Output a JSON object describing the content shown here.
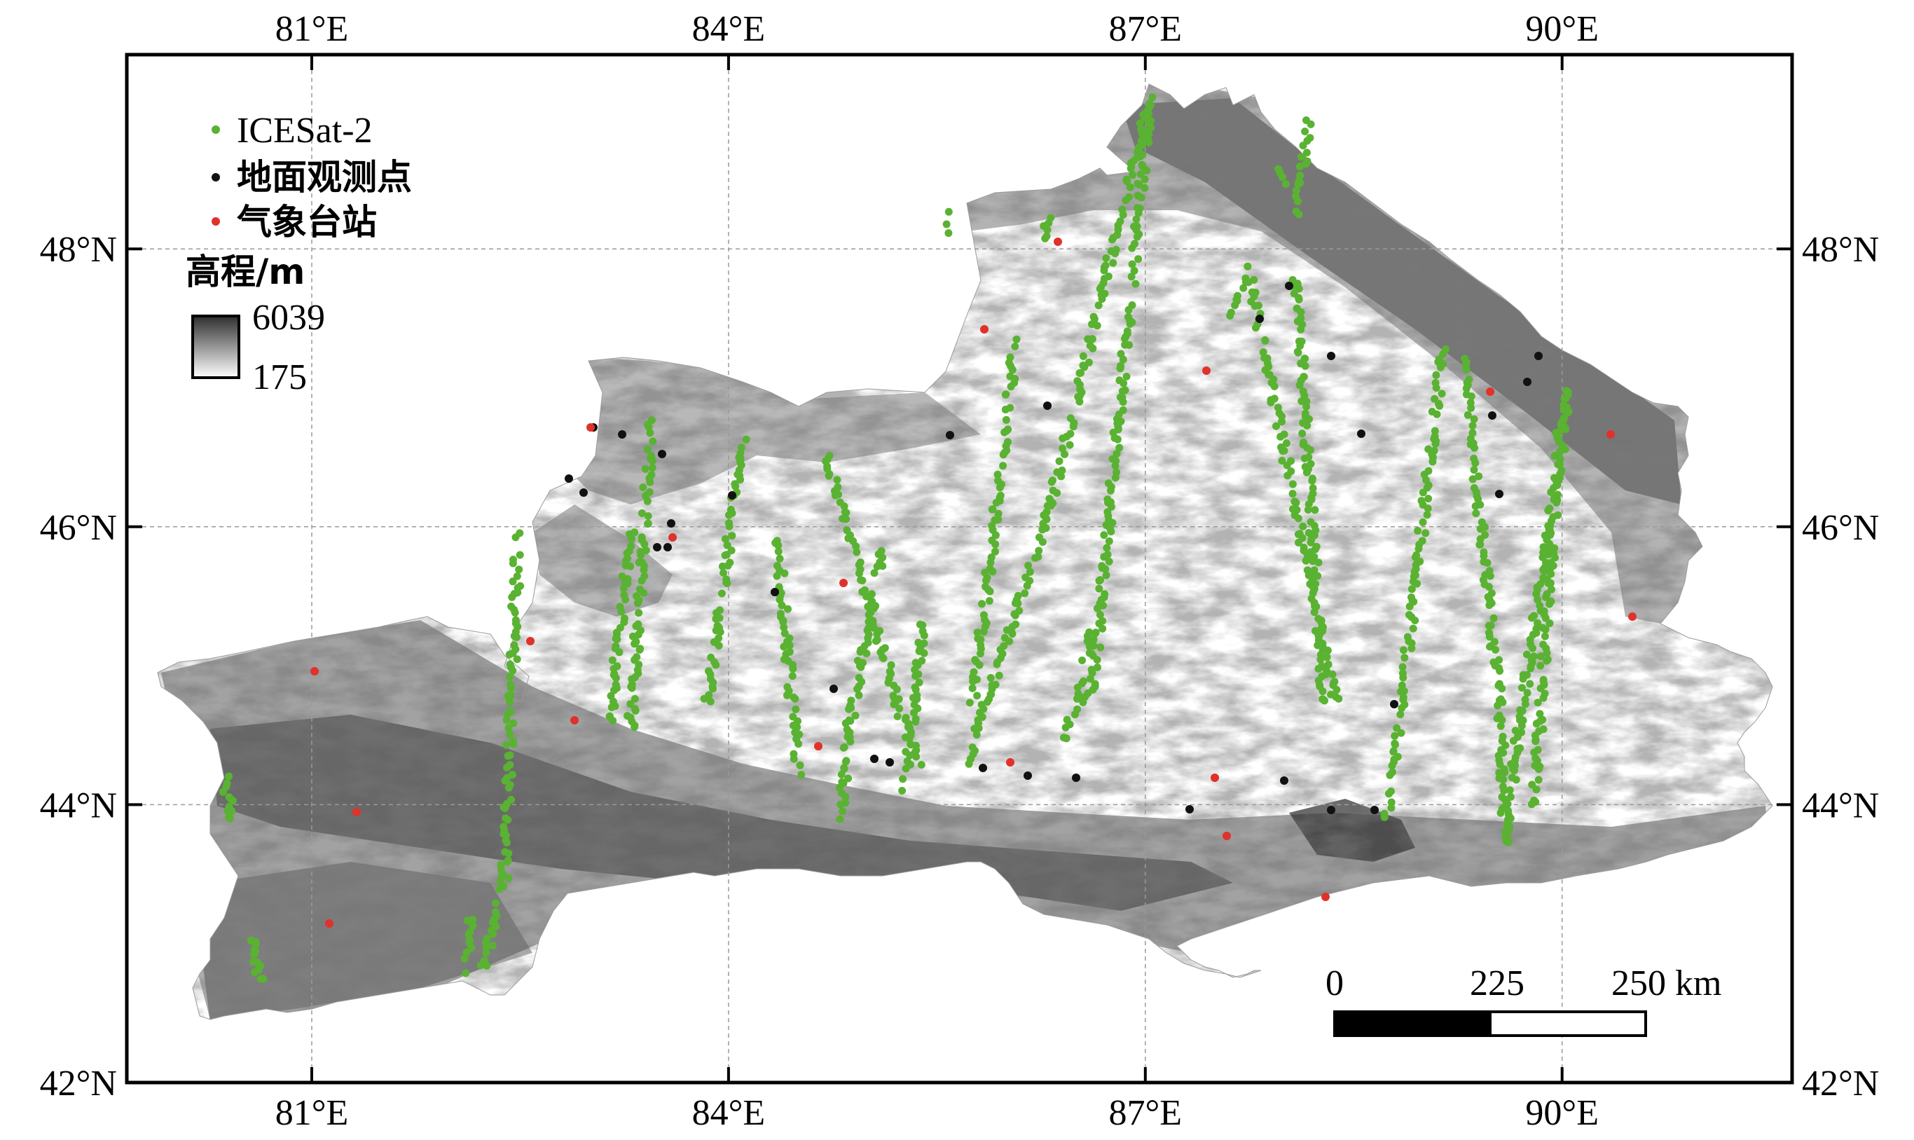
{
  "map": {
    "lon_labels": [
      "81°E",
      "84°E",
      "87°E",
      "90°E"
    ],
    "lat_labels": [
      "48°N",
      "46°N",
      "44°N",
      "42°N"
    ],
    "lon_values": [
      81,
      84,
      87,
      90
    ],
    "lat_values": [
      48,
      46,
      44,
      42
    ],
    "extent": {
      "lon": [
        79.5,
        91.7
      ],
      "lat": [
        42,
        49.6
      ]
    }
  },
  "legend": {
    "items": [
      {
        "label": "ICESat-2",
        "color": "#5ab232"
      },
      {
        "label": "地面观测点",
        "color": "#111111"
      },
      {
        "label": "气象台站",
        "color": "#e0312b"
      }
    ],
    "elevation_title": "高程/m",
    "elevation_max": "6039",
    "elevation_min": "175"
  },
  "scale_bar": {
    "labels": [
      "0",
      "225",
      "250 km"
    ]
  },
  "colors": {
    "icesat": "#5ab232",
    "ground": "#111111",
    "station": "#e0312b",
    "dem_high": "#2e2e2e",
    "dem_low": "#ffffff"
  }
}
